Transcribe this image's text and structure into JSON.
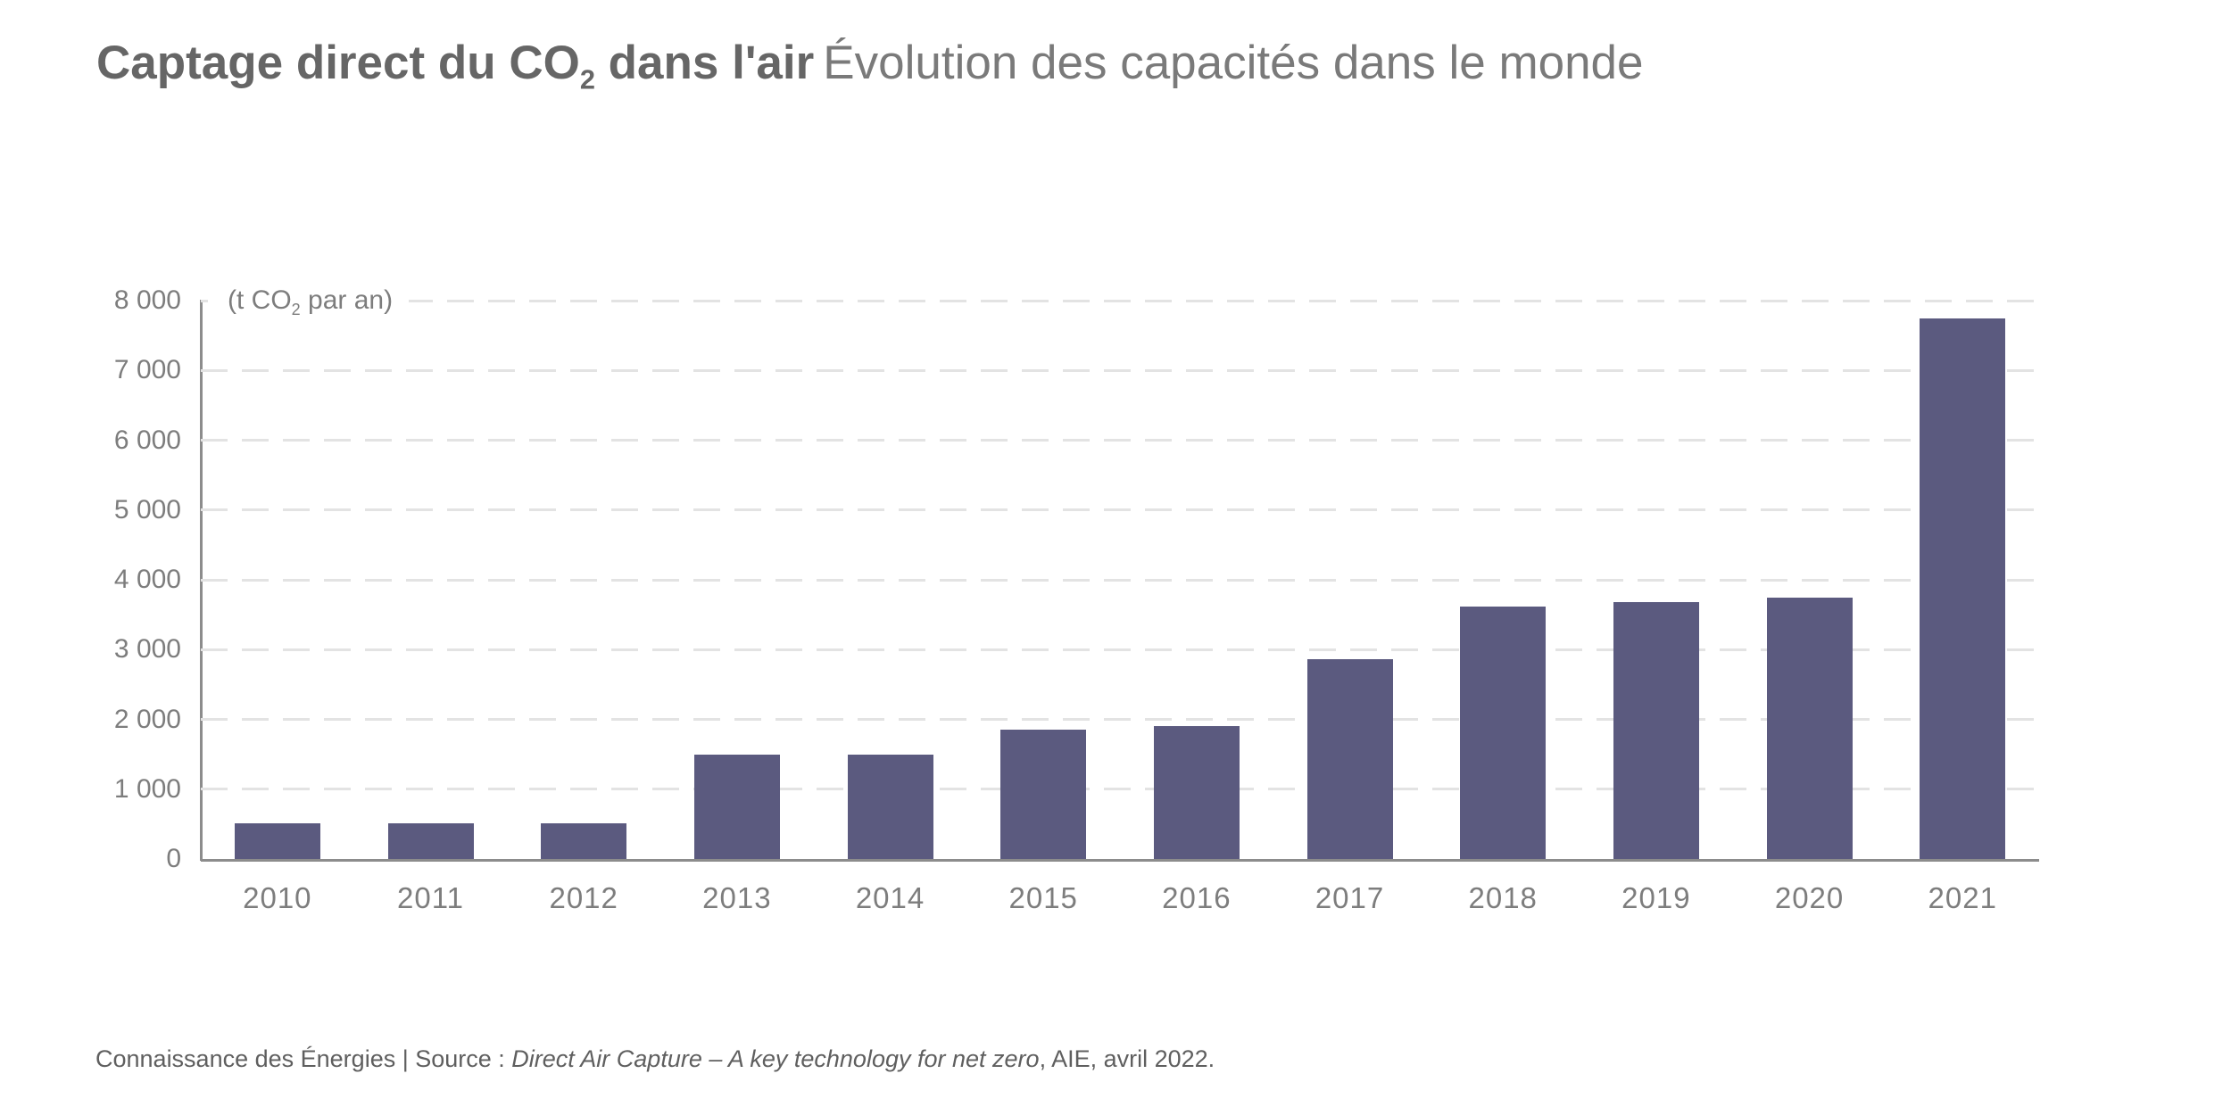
{
  "title": {
    "bold_pre_sub": "Captage direct du CO",
    "sub": "2",
    "bold_post_sub": " dans l'air",
    "light": "Évolution des capacités dans le monde"
  },
  "y_axis": {
    "unit_pre": "(t CO",
    "unit_sub": "2",
    "unit_post": " par an)"
  },
  "footer": {
    "text_start": "Connaissance des Énergies | Source : ",
    "source_italic": "Direct Air Capture – A key technology for net zero",
    "text_end": ", AIE, avril 2022."
  },
  "colors": {
    "bar": "#5b5a7f",
    "axis": "#8c8c8c",
    "gridline": "#e3e3e3",
    "title_bold": "#666666",
    "title_light": "#7a7a7a",
    "tick_text": "#7d7d7d",
    "footer_text": "#5f5f5f",
    "background": "#ffffff"
  },
  "chart_data": {
    "type": "bar",
    "title": "Captage direct du CO2 dans l'air — Évolution des capacités dans le monde",
    "ylabel": "(t CO2 par an)",
    "xlabel": "",
    "categories": [
      "2010",
      "2011",
      "2012",
      "2013",
      "2014",
      "2015",
      "2016",
      "2017",
      "2018",
      "2019",
      "2020",
      "2021"
    ],
    "values": [
      510,
      510,
      510,
      1500,
      1500,
      1860,
      1910,
      2860,
      3620,
      3680,
      3740,
      7740
    ],
    "ylim": [
      0,
      8000
    ],
    "ytick_values": [
      0,
      1000,
      2000,
      3000,
      4000,
      5000,
      6000,
      7000,
      8000
    ],
    "ytick_labels": [
      "0",
      "1 000",
      "2 000",
      "3 000",
      "4 000",
      "5 000",
      "6 000",
      "7 000",
      "8 000"
    ],
    "grid": "horizontal-dashed",
    "legend": "none",
    "bar_color": "#5b5a7f",
    "source": "Connaissance des Énergies | Source : Direct Air Capture – A key technology for net zero, AIE, avril 2022."
  }
}
